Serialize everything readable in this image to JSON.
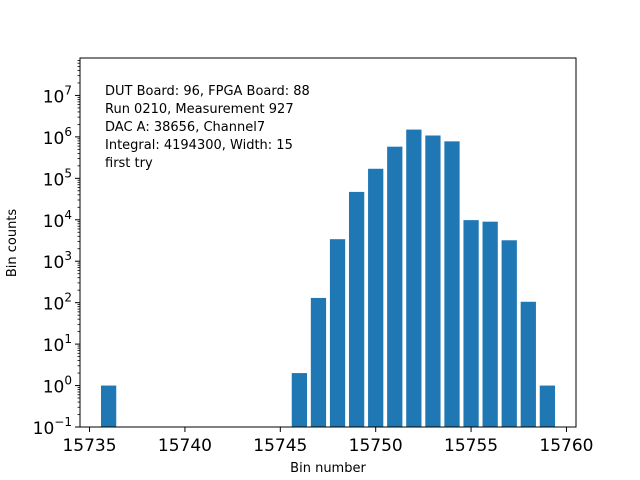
{
  "chart_data": {
    "type": "bar",
    "title": "",
    "xlabel": "Bin number",
    "ylabel": "Bin counts",
    "yscale": "log",
    "xlim": [
      15734.5,
      15760.5
    ],
    "ylim": [
      0.1,
      80000000
    ],
    "bar_color": "#1f77b4",
    "x_ticks": [
      "15735",
      "15740",
      "15745",
      "15750",
      "15755",
      "15760"
    ],
    "x_tick_values": [
      15735,
      15740,
      15745,
      15750,
      15755,
      15760
    ],
    "y_ticks": [
      {
        "base": "10",
        "exp": "−1",
        "value": 0.1
      },
      {
        "base": "10",
        "exp": "0",
        "value": 1
      },
      {
        "base": "10",
        "exp": "1",
        "value": 10
      },
      {
        "base": "10",
        "exp": "2",
        "value": 100
      },
      {
        "base": "10",
        "exp": "3",
        "value": 1000
      },
      {
        "base": "10",
        "exp": "4",
        "value": 10000
      },
      {
        "base": "10",
        "exp": "5",
        "value": 100000
      },
      {
        "base": "10",
        "exp": "6",
        "value": 1000000
      },
      {
        "base": "10",
        "exp": "7",
        "value": 10000000
      }
    ],
    "bins": [
      15736,
      15746,
      15747,
      15748,
      15749,
      15750,
      15751,
      15752,
      15753,
      15754,
      15755,
      15756,
      15757,
      15758,
      15759
    ],
    "values": [
      1,
      2,
      130,
      3400,
      47000,
      170000,
      580000,
      1500000,
      1080000,
      780000,
      9800,
      9000,
      3200,
      105,
      1
    ],
    "annotation_lines": [
      "DUT Board: 96, FPGA Board: 88",
      "Run 0210, Measurement 927",
      "DAC A: 38656, Channel7",
      "Integral: 4194300, Width: 15",
      "first try"
    ]
  }
}
